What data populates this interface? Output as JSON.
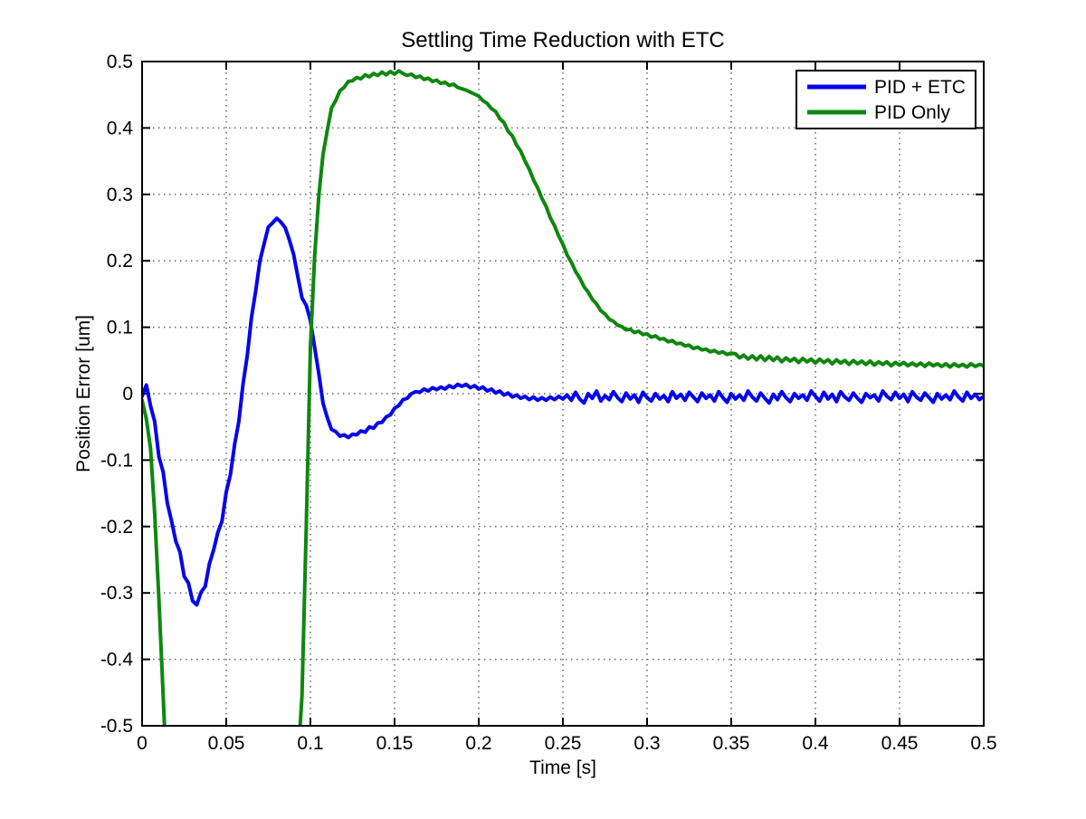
{
  "figure": {
    "background": "#ffffff",
    "axes_color": "#000000",
    "grid_color": "#666666"
  },
  "legend": {
    "position": "top-right",
    "entries": [
      {
        "label": "PID + ETC",
        "color": "#0404ee"
      },
      {
        "label": "PID Only",
        "color": "#0f870f"
      }
    ]
  },
  "chart_data": {
    "type": "line",
    "title": "Settling Time Reduction with ETC",
    "xlabel": "Time [s]",
    "ylabel": "Position Error [um]",
    "xlim": [
      0,
      0.5
    ],
    "ylim": [
      -0.5,
      0.5
    ],
    "grid": true,
    "legend_position": "top-right",
    "xtick_values": [
      0,
      0.05,
      0.1,
      0.15,
      0.2,
      0.25,
      0.3,
      0.35,
      0.4,
      0.45,
      0.5
    ],
    "xtick_labels": [
      "0",
      "0.05",
      "0.1",
      "0.15",
      "0.2",
      "0.25",
      "0.3",
      "0.35",
      "0.4",
      "0.45",
      "0.5"
    ],
    "ytick_values": [
      -0.5,
      -0.4,
      -0.3,
      -0.2,
      -0.1,
      0,
      0.1,
      0.2,
      0.3,
      0.4,
      0.5
    ],
    "ytick_labels": [
      "-0.5",
      "-0.4",
      "-0.3",
      "-0.2",
      "-0.1",
      "0",
      "0.1",
      "0.2",
      "0.3",
      "0.4",
      "0.5"
    ],
    "series": [
      {
        "name": "PID + ETC",
        "color": "#0404ee",
        "t_start": 0,
        "t_step": 0.0025,
        "values": [
          -0.004,
          0.013,
          -0.018,
          -0.042,
          -0.095,
          -0.118,
          -0.165,
          -0.192,
          -0.222,
          -0.238,
          -0.275,
          -0.285,
          -0.312,
          -0.318,
          -0.299,
          -0.29,
          -0.256,
          -0.235,
          -0.209,
          -0.192,
          -0.148,
          -0.122,
          -0.076,
          -0.042,
          0.015,
          0.058,
          0.115,
          0.155,
          0.2,
          0.226,
          0.251,
          0.257,
          0.264,
          0.258,
          0.25,
          0.231,
          0.21,
          0.176,
          0.144,
          0.133,
          0.11,
          0.07,
          0.03,
          -0.014,
          -0.036,
          -0.054,
          -0.057,
          -0.064,
          -0.062,
          -0.066,
          -0.061,
          -0.062,
          -0.056,
          -0.058,
          -0.05,
          -0.052,
          -0.044,
          -0.043,
          -0.035,
          -0.032,
          -0.022,
          -0.018,
          -0.009,
          -0.007,
          0.0,
          0.003,
          0.002,
          0.007,
          0.004,
          0.009,
          0.006,
          0.01,
          0.007,
          0.012,
          0.009,
          0.014,
          0.011,
          0.014,
          0.009,
          0.012,
          0.007,
          0.01,
          0.004,
          0.007,
          0.001,
          0.004,
          -0.002,
          0.001,
          -0.005,
          -0.002,
          -0.007,
          -0.004,
          -0.009,
          -0.005,
          -0.01,
          -0.006,
          -0.01,
          -0.005,
          -0.009,
          -0.004,
          -0.008,
          -0.002,
          -0.01,
          0.002,
          -0.008,
          -0.014,
          0.0,
          -0.007,
          0.004,
          -0.011,
          -0.003,
          -0.009,
          0.003,
          -0.006,
          -0.012,
          0.001,
          -0.008,
          -0.002,
          -0.013,
          0.002,
          -0.006,
          -0.011,
          0.0,
          -0.008,
          -0.003,
          -0.012,
          0.003,
          -0.007,
          -0.001,
          -0.01,
          0.002,
          -0.005,
          -0.012,
          0.001,
          -0.007,
          -0.002,
          -0.011,
          0.003,
          -0.006,
          -0.013,
          0.0,
          -0.008,
          -0.002,
          -0.01,
          0.004,
          -0.005,
          -0.011,
          0.001,
          -0.007,
          -0.014,
          -0.001,
          -0.009,
          0.003,
          -0.006,
          -0.012,
          0.0,
          -0.007,
          -0.002,
          -0.01,
          0.004,
          -0.004,
          -0.011,
          0.002,
          -0.008,
          -0.001,
          -0.012,
          0.003,
          -0.005,
          -0.01,
          0.001,
          -0.007,
          -0.013,
          0.0,
          -0.006,
          -0.002,
          -0.011,
          0.004,
          -0.004,
          -0.009,
          0.002,
          -0.007,
          -0.001,
          -0.012,
          0.003,
          -0.005,
          -0.01,
          0.001,
          -0.006,
          -0.013,
          0.0,
          -0.008,
          -0.002,
          -0.009,
          0.004,
          -0.005,
          -0.011,
          0.002,
          -0.007,
          -0.001,
          -0.009,
          -0.004
        ]
      },
      {
        "name": "PID Only",
        "color": "#0f870f",
        "t_start": 0,
        "t_step": 0.0025,
        "values": [
          -0.01,
          -0.038,
          -0.082,
          -0.18,
          -0.31,
          -0.455,
          -0.6,
          -0.6,
          -0.6,
          -0.6,
          -0.6,
          -0.6,
          -0.6,
          -0.6,
          -0.6,
          -0.6,
          -0.6,
          -0.6,
          -0.6,
          -0.6,
          -0.6,
          -0.6,
          -0.6,
          -0.6,
          -0.6,
          -0.6,
          -0.6,
          -0.6,
          -0.6,
          -0.6,
          -0.6,
          -0.6,
          -0.6,
          -0.6,
          -0.6,
          -0.6,
          -0.6,
          -0.555,
          -0.455,
          -0.2,
          0.07,
          0.205,
          0.298,
          0.36,
          0.396,
          0.43,
          0.441,
          0.456,
          0.461,
          0.47,
          0.471,
          0.476,
          0.474,
          0.48,
          0.477,
          0.482,
          0.479,
          0.484,
          0.48,
          0.485,
          0.481,
          0.486,
          0.482,
          0.479,
          0.481,
          0.476,
          0.478,
          0.473,
          0.475,
          0.47,
          0.472,
          0.467,
          0.469,
          0.464,
          0.466,
          0.461,
          0.459,
          0.457,
          0.454,
          0.451,
          0.448,
          0.441,
          0.437,
          0.429,
          0.425,
          0.414,
          0.408,
          0.395,
          0.388,
          0.374,
          0.365,
          0.35,
          0.338,
          0.322,
          0.31,
          0.294,
          0.282,
          0.265,
          0.253,
          0.237,
          0.225,
          0.209,
          0.198,
          0.184,
          0.174,
          0.161,
          0.153,
          0.142,
          0.135,
          0.125,
          0.12,
          0.112,
          0.109,
          0.103,
          0.101,
          0.096,
          0.097,
          0.092,
          0.094,
          0.089,
          0.09,
          0.085,
          0.087,
          0.082,
          0.083,
          0.078,
          0.08,
          0.075,
          0.076,
          0.072,
          0.073,
          0.068,
          0.07,
          0.066,
          0.067,
          0.063,
          0.065,
          0.061,
          0.063,
          0.059,
          0.061,
          0.06,
          0.054,
          0.058,
          0.052,
          0.057,
          0.051,
          0.057,
          0.05,
          0.056,
          0.05,
          0.055,
          0.048,
          0.054,
          0.049,
          0.053,
          0.047,
          0.053,
          0.048,
          0.052,
          0.046,
          0.052,
          0.047,
          0.051,
          0.045,
          0.051,
          0.046,
          0.05,
          0.044,
          0.05,
          0.045,
          0.049,
          0.044,
          0.049,
          0.043,
          0.048,
          0.044,
          0.048,
          0.042,
          0.047,
          0.043,
          0.047,
          0.042,
          0.046,
          0.042,
          0.046,
          0.041,
          0.046,
          0.042,
          0.045,
          0.041,
          0.045,
          0.04,
          0.045,
          0.041,
          0.044,
          0.04,
          0.045,
          0.041,
          0.044,
          0.042
        ]
      }
    ]
  }
}
